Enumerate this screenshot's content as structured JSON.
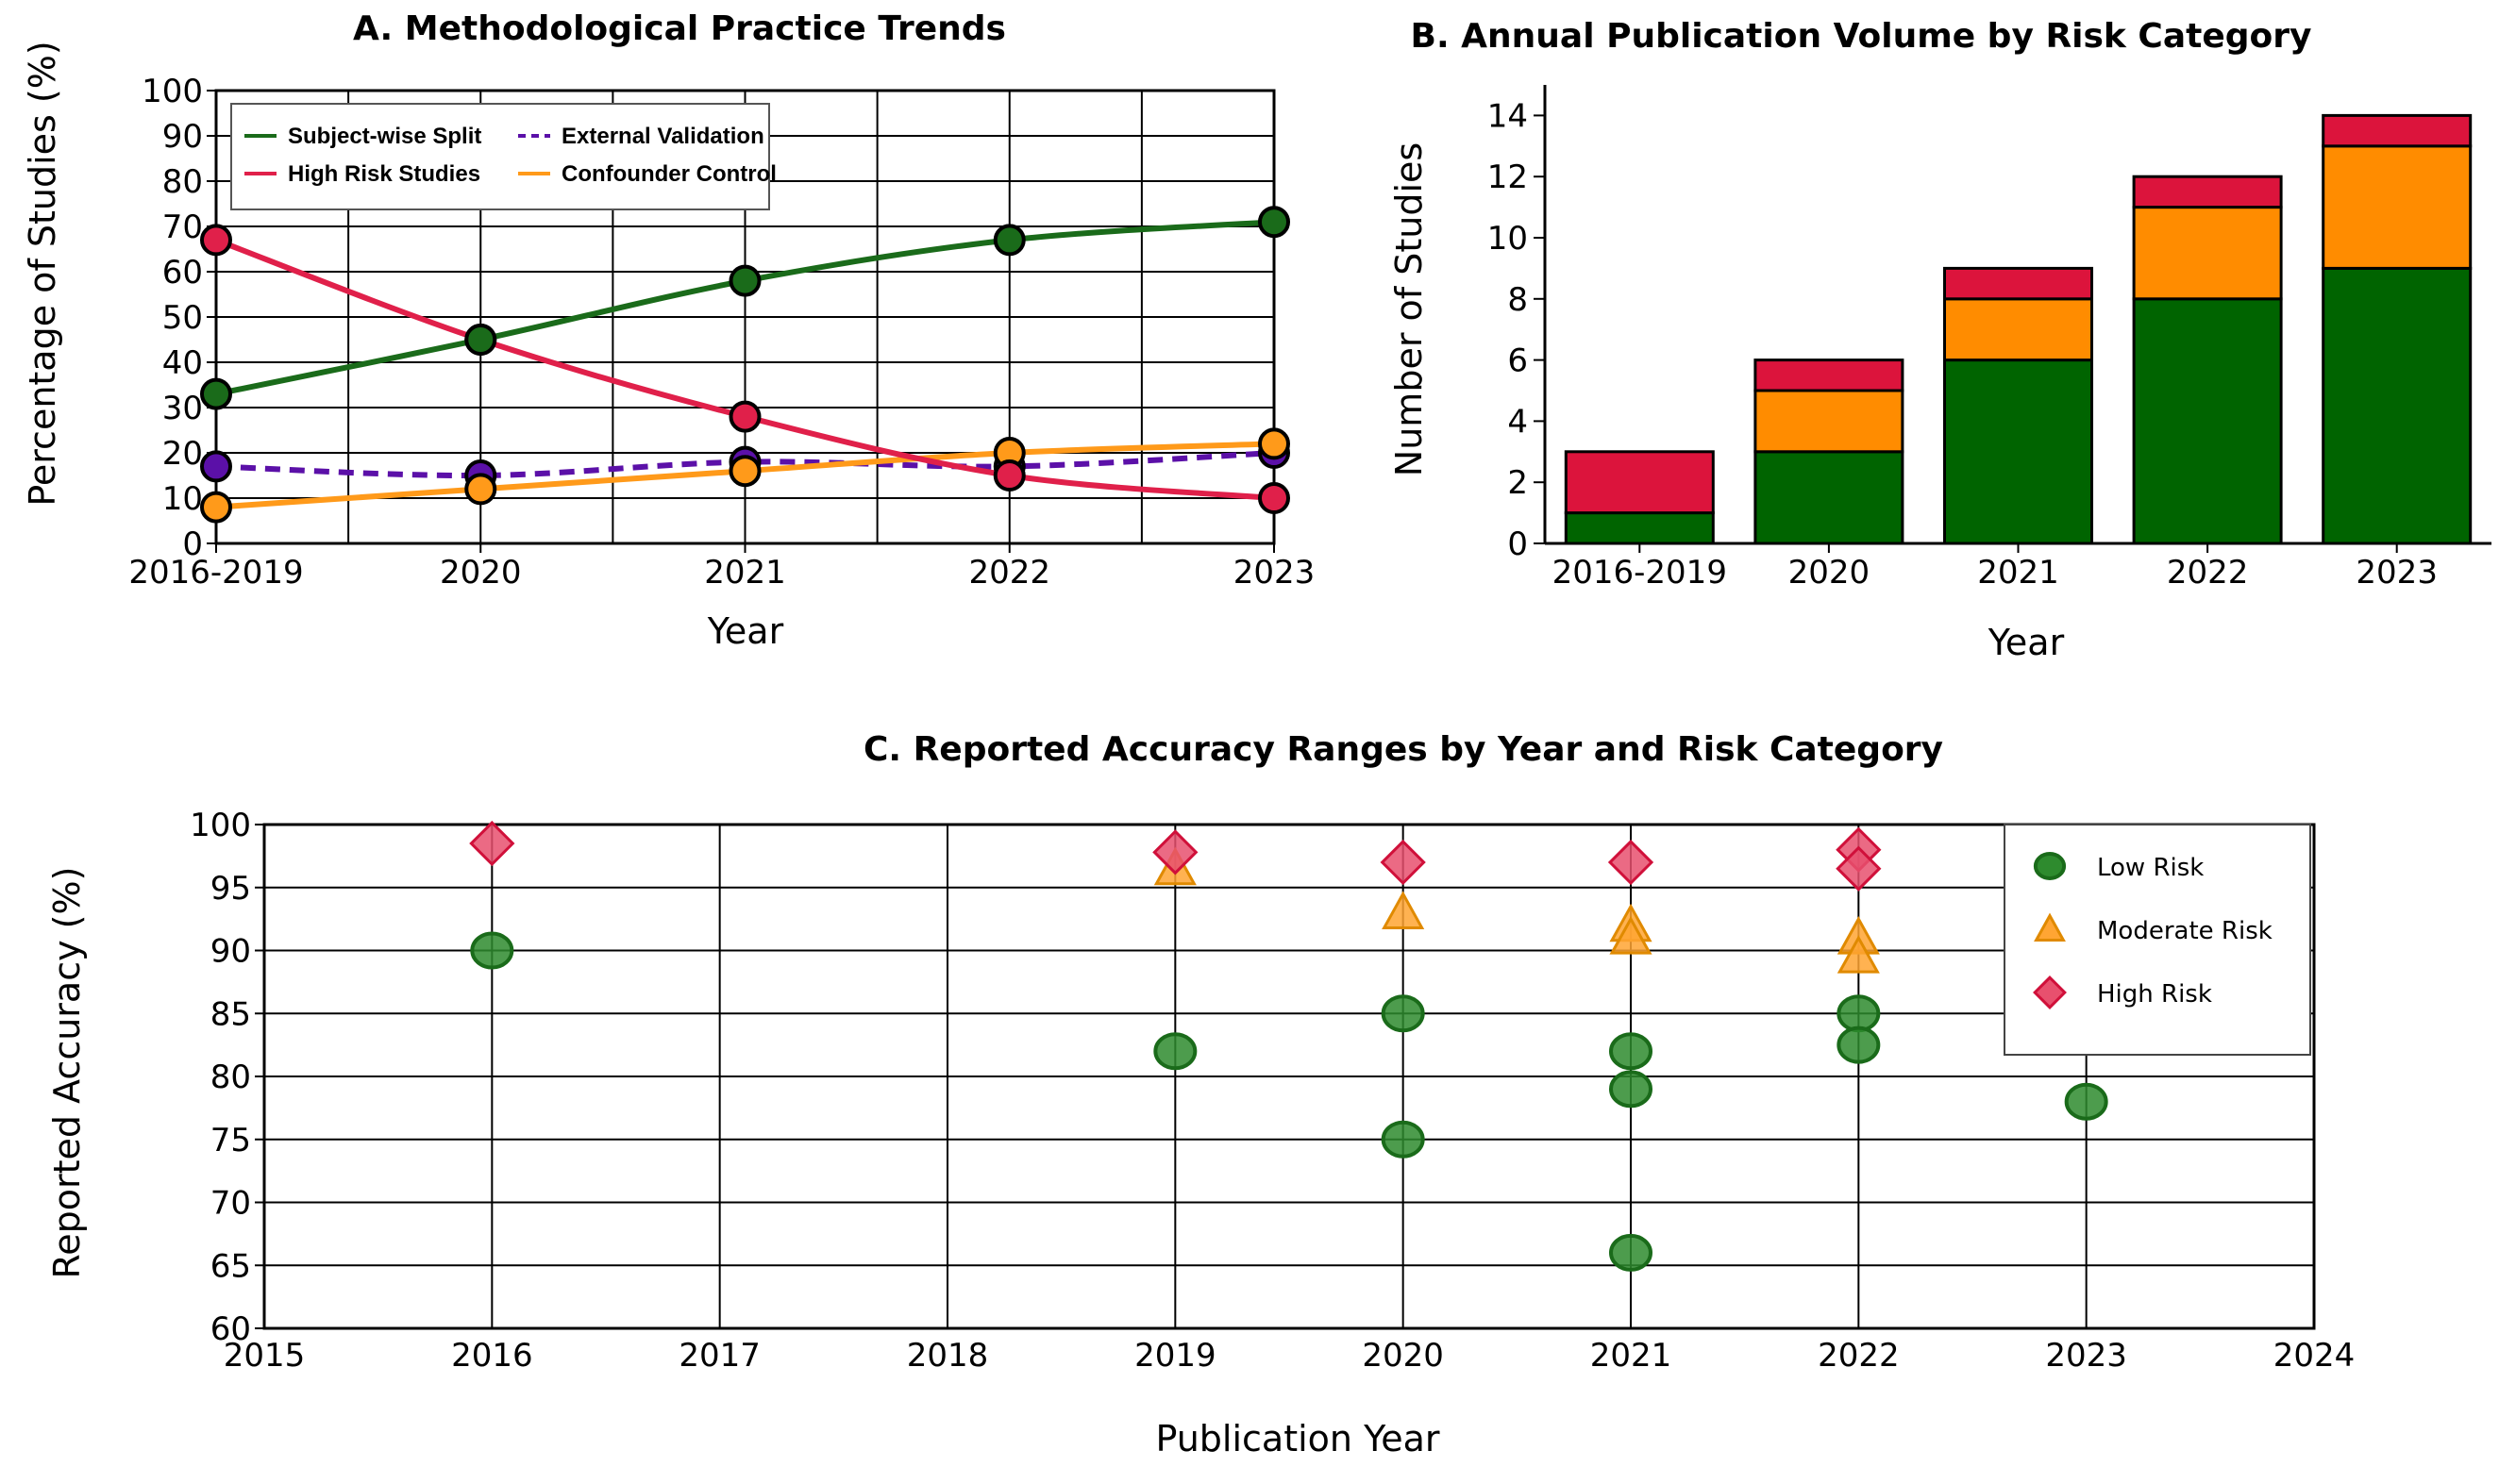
{
  "chart_data": [
    {
      "type": "line",
      "title": "A. Methodological Practice Trends",
      "xlabel": "Year",
      "ylabel": "Percentage of Studies (%)",
      "categories": [
        "2016-2019",
        "2020",
        "2021",
        "2022",
        "2023"
      ],
      "ylim": [
        0,
        100
      ],
      "yticks": [
        0,
        10,
        20,
        30,
        40,
        50,
        60,
        70,
        80,
        90,
        100
      ],
      "grid": true,
      "legend_position": "top-left",
      "series": [
        {
          "name": "Subject-wise Split",
          "values": [
            33,
            45,
            58,
            67,
            71
          ],
          "color": "#1a6b1a",
          "style": "solid"
        },
        {
          "name": "High Risk Studies",
          "values": [
            67,
            45,
            28,
            15,
            10
          ],
          "color": "#e0204a",
          "style": "solid"
        },
        {
          "name": "External Validation",
          "values": [
            17,
            15,
            18,
            17,
            20
          ],
          "color": "#5b10a8",
          "style": "dashed"
        },
        {
          "name": "Confounder Control",
          "values": [
            8,
            12,
            16,
            20,
            22
          ],
          "color": "#ff9a1a",
          "style": "solid"
        }
      ]
    },
    {
      "type": "bar",
      "stacked": true,
      "title": "B. Annual Publication Volume by Risk Category",
      "xlabel": "Year",
      "ylabel": "Number of Studies",
      "categories": [
        "2016-2019",
        "2020",
        "2021",
        "2022",
        "2023"
      ],
      "ylim": [
        0,
        15
      ],
      "yticks": [
        0,
        2,
        4,
        6,
        8,
        10,
        12,
        14
      ],
      "grid": false,
      "series": [
        {
          "values": [
            1,
            3,
            6,
            8,
            9
          ],
          "color": "#006400"
        },
        {
          "values": [
            0,
            2,
            2,
            3,
            4
          ],
          "color": "#ff8c00"
        },
        {
          "values": [
            2,
            1,
            1,
            1,
            1
          ],
          "color": "#dc143c"
        }
      ]
    },
    {
      "type": "scatter",
      "title": "C. Reported Accuracy Ranges by Year and Risk Category",
      "xlabel": "Publication Year",
      "ylabel": "Reported Accuracy (%)",
      "xlim": [
        2015,
        2024
      ],
      "ylim": [
        60,
        100
      ],
      "xticks": [
        2015,
        2016,
        2017,
        2018,
        2019,
        2020,
        2021,
        2022,
        2023,
        2024
      ],
      "yticks": [
        60,
        65,
        70,
        75,
        80,
        85,
        90,
        95,
        100
      ],
      "grid": true,
      "legend_position": "top-right",
      "series": [
        {
          "name": "Low Risk",
          "marker": "circle",
          "color": "#2e8b2e",
          "points": [
            [
              2016,
              90
            ],
            [
              2019,
              82
            ],
            [
              2020,
              85
            ],
            [
              2020,
              75
            ],
            [
              2021,
              82
            ],
            [
              2021,
              79
            ],
            [
              2021,
              66
            ],
            [
              2022,
              85
            ],
            [
              2022,
              82.5
            ],
            [
              2023,
              78
            ]
          ]
        },
        {
          "name": "Moderate Risk",
          "marker": "triangle",
          "color": "#ffa533",
          "points": [
            [
              2019,
              96.5
            ],
            [
              2020,
              93
            ],
            [
              2021,
              92
            ],
            [
              2021,
              91
            ],
            [
              2022,
              91
            ],
            [
              2022,
              89.5
            ]
          ]
        },
        {
          "name": "High Risk",
          "marker": "diamond",
          "color": "#e8506e",
          "points": [
            [
              2016,
              98.5
            ],
            [
              2019,
              97.8
            ],
            [
              2020,
              97
            ],
            [
              2021,
              97
            ],
            [
              2022,
              98
            ],
            [
              2022,
              96.5
            ]
          ]
        }
      ]
    }
  ]
}
